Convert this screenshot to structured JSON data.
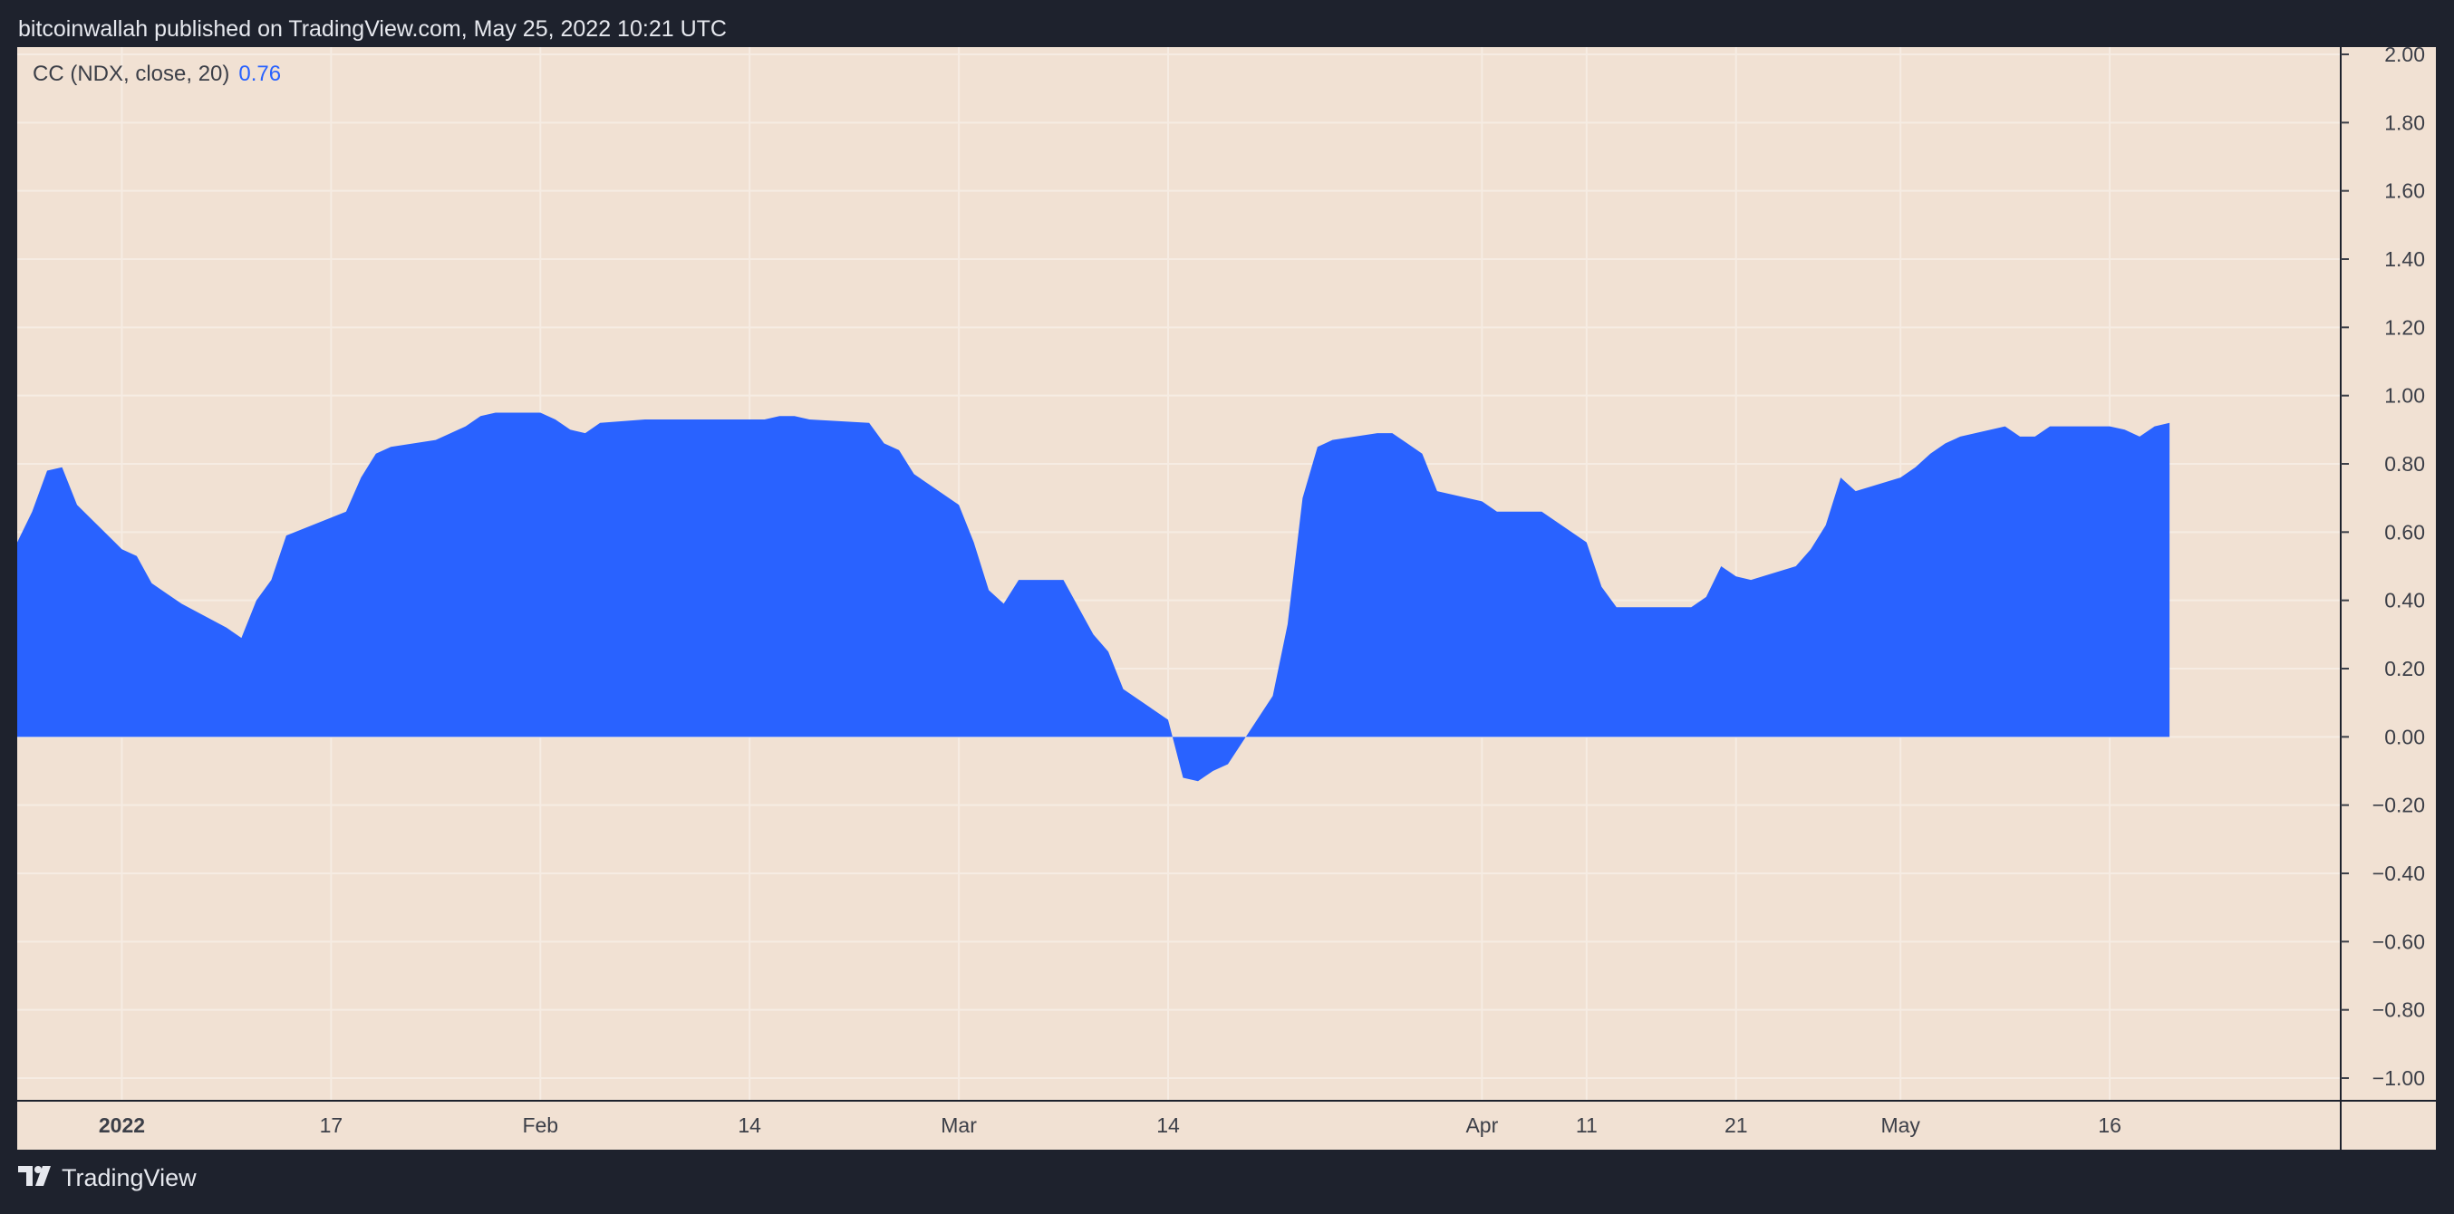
{
  "header": {
    "text": "bitcoinwallah published on TradingView.com, May 25, 2022 10:21 UTC"
  },
  "legend": {
    "label": "CC (NDX, close, 20)",
    "value": "0.76"
  },
  "footer": {
    "brand": "TradingView",
    "logo_icon": "tradingview-logo-icon"
  },
  "colors": {
    "background": "#f1e1d3",
    "series": "#2962ff",
    "frame": "#1e222d",
    "grid": "#f6ece3",
    "tick_text": "#3c3f48"
  },
  "chart_data": {
    "type": "area",
    "baseline": 0,
    "ylim": [
      -1.0,
      2.0
    ],
    "y_ticks": [
      -1.0,
      -0.8,
      -0.6,
      -0.4,
      -0.2,
      0.0,
      0.2,
      0.4,
      0.6,
      0.8,
      1.0,
      1.2,
      1.4,
      1.6,
      1.8,
      2.0
    ],
    "y_tick_labels": [
      "−1.00",
      "−0.80",
      "−0.60",
      "−0.40",
      "−0.20",
      "0.00",
      "0.20",
      "0.40",
      "0.60",
      "0.80",
      "1.00",
      "1.20",
      "1.40",
      "1.60",
      "1.80",
      "2.00"
    ],
    "x_range": [
      "2021-12-27",
      "2022-05-30"
    ],
    "x_ticks": [
      {
        "date": "2022-01-03",
        "label": "2022",
        "bold": true
      },
      {
        "date": "2022-01-17",
        "label": "17"
      },
      {
        "date": "2022-01-31",
        "label": "Feb"
      },
      {
        "date": "2022-02-14",
        "label": "14"
      },
      {
        "date": "2022-02-28",
        "label": "Mar"
      },
      {
        "date": "2022-03-14",
        "label": "14"
      },
      {
        "date": "2022-04-04",
        "label": "Apr"
      },
      {
        "date": "2022-04-11",
        "label": "11"
      },
      {
        "date": "2022-04-21",
        "label": "21"
      },
      {
        "date": "2022-05-02",
        "label": "May"
      },
      {
        "date": "2022-05-16",
        "label": "16"
      }
    ],
    "x_grid": [
      "2022-01-03",
      "2022-01-17",
      "2022-01-31",
      "2022-02-14",
      "2022-02-28",
      "2022-03-14",
      "2022-04-04",
      "2022-04-11",
      "2022-04-21",
      "2022-05-02",
      "2022-05-16"
    ],
    "series": [
      {
        "values": [
          [
            "2021-12-27",
            0.57
          ],
          [
            "2021-12-28",
            0.66
          ],
          [
            "2021-12-29",
            0.78
          ],
          [
            "2021-12-30",
            0.79
          ],
          [
            "2021-12-31",
            0.68
          ],
          [
            "2022-01-03",
            0.55
          ],
          [
            "2022-01-04",
            0.53
          ],
          [
            "2022-01-05",
            0.45
          ],
          [
            "2022-01-06",
            0.42
          ],
          [
            "2022-01-07",
            0.39
          ],
          [
            "2022-01-10",
            0.32
          ],
          [
            "2022-01-11",
            0.29
          ],
          [
            "2022-01-12",
            0.4
          ],
          [
            "2022-01-13",
            0.46
          ],
          [
            "2022-01-14",
            0.59
          ],
          [
            "2022-01-18",
            0.66
          ],
          [
            "2022-01-19",
            0.76
          ],
          [
            "2022-01-20",
            0.83
          ],
          [
            "2022-01-21",
            0.85
          ],
          [
            "2022-01-24",
            0.87
          ],
          [
            "2022-01-25",
            0.89
          ],
          [
            "2022-01-26",
            0.91
          ],
          [
            "2022-01-27",
            0.94
          ],
          [
            "2022-01-28",
            0.95
          ],
          [
            "2022-01-31",
            0.95
          ],
          [
            "2022-02-01",
            0.93
          ],
          [
            "2022-02-02",
            0.9
          ],
          [
            "2022-02-03",
            0.89
          ],
          [
            "2022-02-04",
            0.92
          ],
          [
            "2022-02-07",
            0.93
          ],
          [
            "2022-02-08",
            0.93
          ],
          [
            "2022-02-09",
            0.93
          ],
          [
            "2022-02-10",
            0.93
          ],
          [
            "2022-02-11",
            0.93
          ],
          [
            "2022-02-14",
            0.93
          ],
          [
            "2022-02-15",
            0.93
          ],
          [
            "2022-02-16",
            0.94
          ],
          [
            "2022-02-17",
            0.94
          ],
          [
            "2022-02-18",
            0.93
          ],
          [
            "2022-02-22",
            0.92
          ],
          [
            "2022-02-23",
            0.86
          ],
          [
            "2022-02-24",
            0.84
          ],
          [
            "2022-02-25",
            0.77
          ],
          [
            "2022-02-28",
            0.68
          ],
          [
            "2022-03-01",
            0.57
          ],
          [
            "2022-03-02",
            0.43
          ],
          [
            "2022-03-03",
            0.39
          ],
          [
            "2022-03-04",
            0.46
          ],
          [
            "2022-03-07",
            0.46
          ],
          [
            "2022-03-08",
            0.38
          ],
          [
            "2022-03-09",
            0.3
          ],
          [
            "2022-03-10",
            0.25
          ],
          [
            "2022-03-11",
            0.14
          ],
          [
            "2022-03-14",
            0.05
          ],
          [
            "2022-03-15",
            -0.12
          ],
          [
            "2022-03-16",
            -0.13
          ],
          [
            "2022-03-17",
            -0.1
          ],
          [
            "2022-03-18",
            -0.08
          ],
          [
            "2022-03-21",
            0.12
          ],
          [
            "2022-03-22",
            0.33
          ],
          [
            "2022-03-23",
            0.7
          ],
          [
            "2022-03-24",
            0.85
          ],
          [
            "2022-03-25",
            0.87
          ],
          [
            "2022-03-28",
            0.89
          ],
          [
            "2022-03-29",
            0.89
          ],
          [
            "2022-03-30",
            0.86
          ],
          [
            "2022-03-31",
            0.83
          ],
          [
            "2022-04-01",
            0.72
          ],
          [
            "2022-04-04",
            0.69
          ],
          [
            "2022-04-05",
            0.66
          ],
          [
            "2022-04-06",
            0.66
          ],
          [
            "2022-04-07",
            0.66
          ],
          [
            "2022-04-08",
            0.66
          ],
          [
            "2022-04-11",
            0.57
          ],
          [
            "2022-04-12",
            0.44
          ],
          [
            "2022-04-13",
            0.38
          ],
          [
            "2022-04-14",
            0.38
          ],
          [
            "2022-04-18",
            0.38
          ],
          [
            "2022-04-19",
            0.41
          ],
          [
            "2022-04-20",
            0.5
          ],
          [
            "2022-04-21",
            0.47
          ],
          [
            "2022-04-22",
            0.46
          ],
          [
            "2022-04-25",
            0.5
          ],
          [
            "2022-04-26",
            0.55
          ],
          [
            "2022-04-27",
            0.62
          ],
          [
            "2022-04-28",
            0.76
          ],
          [
            "2022-04-29",
            0.72
          ],
          [
            "2022-05-02",
            0.76
          ],
          [
            "2022-05-03",
            0.79
          ],
          [
            "2022-05-04",
            0.83
          ],
          [
            "2022-05-05",
            0.86
          ],
          [
            "2022-05-06",
            0.88
          ],
          [
            "2022-05-09",
            0.91
          ],
          [
            "2022-05-10",
            0.88
          ],
          [
            "2022-05-11",
            0.88
          ],
          [
            "2022-05-12",
            0.91
          ],
          [
            "2022-05-13",
            0.91
          ],
          [
            "2022-05-16",
            0.91
          ],
          [
            "2022-05-17",
            0.9
          ],
          [
            "2022-05-18",
            0.88
          ],
          [
            "2022-05-19",
            0.91
          ],
          [
            "2022-05-20",
            0.92
          ]
        ]
      }
    ]
  }
}
